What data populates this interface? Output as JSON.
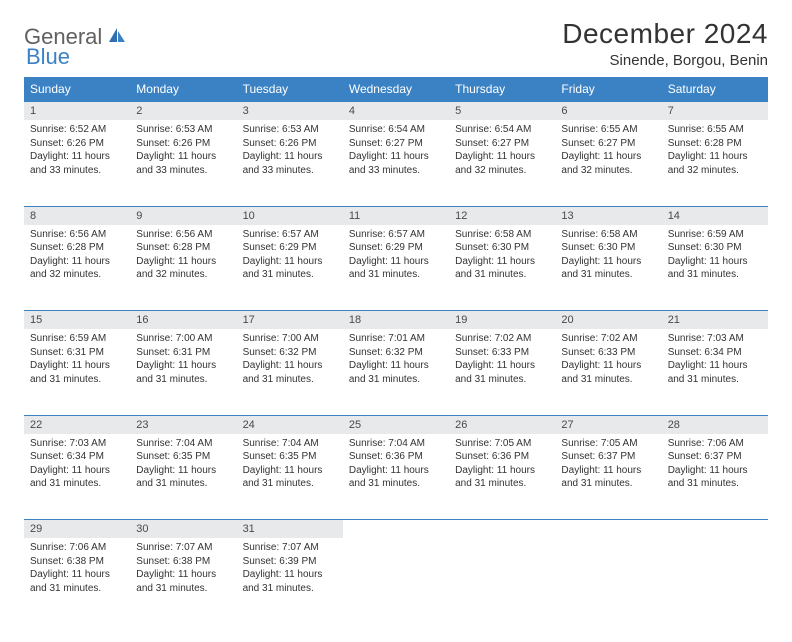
{
  "logo": {
    "word1": "General",
    "word2": "Blue"
  },
  "title": "December 2024",
  "location": "Sinende, Borgou, Benin",
  "colors": {
    "header_bg": "#3b82c4",
    "header_text": "#ffffff",
    "daynum_bg": "#e7e9eb",
    "row_border": "#3b82c4",
    "text": "#333333",
    "logo_gray": "#616161",
    "logo_blue": "#3b82c4",
    "page_bg": "#ffffff"
  },
  "typography": {
    "title_fontsize": 28,
    "location_fontsize": 15,
    "dayheader_fontsize": 12,
    "daynum_fontsize": 11,
    "cell_fontsize": 10
  },
  "day_headers": [
    "Sunday",
    "Monday",
    "Tuesday",
    "Wednesday",
    "Thursday",
    "Friday",
    "Saturday"
  ],
  "weeks": [
    [
      {
        "num": "1",
        "sunrise": "6:52 AM",
        "sunset": "6:26 PM",
        "daylight": "11 hours and 33 minutes."
      },
      {
        "num": "2",
        "sunrise": "6:53 AM",
        "sunset": "6:26 PM",
        "daylight": "11 hours and 33 minutes."
      },
      {
        "num": "3",
        "sunrise": "6:53 AM",
        "sunset": "6:26 PM",
        "daylight": "11 hours and 33 minutes."
      },
      {
        "num": "4",
        "sunrise": "6:54 AM",
        "sunset": "6:27 PM",
        "daylight": "11 hours and 33 minutes."
      },
      {
        "num": "5",
        "sunrise": "6:54 AM",
        "sunset": "6:27 PM",
        "daylight": "11 hours and 32 minutes."
      },
      {
        "num": "6",
        "sunrise": "6:55 AM",
        "sunset": "6:27 PM",
        "daylight": "11 hours and 32 minutes."
      },
      {
        "num": "7",
        "sunrise": "6:55 AM",
        "sunset": "6:28 PM",
        "daylight": "11 hours and 32 minutes."
      }
    ],
    [
      {
        "num": "8",
        "sunrise": "6:56 AM",
        "sunset": "6:28 PM",
        "daylight": "11 hours and 32 minutes."
      },
      {
        "num": "9",
        "sunrise": "6:56 AM",
        "sunset": "6:28 PM",
        "daylight": "11 hours and 32 minutes."
      },
      {
        "num": "10",
        "sunrise": "6:57 AM",
        "sunset": "6:29 PM",
        "daylight": "11 hours and 31 minutes."
      },
      {
        "num": "11",
        "sunrise": "6:57 AM",
        "sunset": "6:29 PM",
        "daylight": "11 hours and 31 minutes."
      },
      {
        "num": "12",
        "sunrise": "6:58 AM",
        "sunset": "6:30 PM",
        "daylight": "11 hours and 31 minutes."
      },
      {
        "num": "13",
        "sunrise": "6:58 AM",
        "sunset": "6:30 PM",
        "daylight": "11 hours and 31 minutes."
      },
      {
        "num": "14",
        "sunrise": "6:59 AM",
        "sunset": "6:30 PM",
        "daylight": "11 hours and 31 minutes."
      }
    ],
    [
      {
        "num": "15",
        "sunrise": "6:59 AM",
        "sunset": "6:31 PM",
        "daylight": "11 hours and 31 minutes."
      },
      {
        "num": "16",
        "sunrise": "7:00 AM",
        "sunset": "6:31 PM",
        "daylight": "11 hours and 31 minutes."
      },
      {
        "num": "17",
        "sunrise": "7:00 AM",
        "sunset": "6:32 PM",
        "daylight": "11 hours and 31 minutes."
      },
      {
        "num": "18",
        "sunrise": "7:01 AM",
        "sunset": "6:32 PM",
        "daylight": "11 hours and 31 minutes."
      },
      {
        "num": "19",
        "sunrise": "7:02 AM",
        "sunset": "6:33 PM",
        "daylight": "11 hours and 31 minutes."
      },
      {
        "num": "20",
        "sunrise": "7:02 AM",
        "sunset": "6:33 PM",
        "daylight": "11 hours and 31 minutes."
      },
      {
        "num": "21",
        "sunrise": "7:03 AM",
        "sunset": "6:34 PM",
        "daylight": "11 hours and 31 minutes."
      }
    ],
    [
      {
        "num": "22",
        "sunrise": "7:03 AM",
        "sunset": "6:34 PM",
        "daylight": "11 hours and 31 minutes."
      },
      {
        "num": "23",
        "sunrise": "7:04 AM",
        "sunset": "6:35 PM",
        "daylight": "11 hours and 31 minutes."
      },
      {
        "num": "24",
        "sunrise": "7:04 AM",
        "sunset": "6:35 PM",
        "daylight": "11 hours and 31 minutes."
      },
      {
        "num": "25",
        "sunrise": "7:04 AM",
        "sunset": "6:36 PM",
        "daylight": "11 hours and 31 minutes."
      },
      {
        "num": "26",
        "sunrise": "7:05 AM",
        "sunset": "6:36 PM",
        "daylight": "11 hours and 31 minutes."
      },
      {
        "num": "27",
        "sunrise": "7:05 AM",
        "sunset": "6:37 PM",
        "daylight": "11 hours and 31 minutes."
      },
      {
        "num": "28",
        "sunrise": "7:06 AM",
        "sunset": "6:37 PM",
        "daylight": "11 hours and 31 minutes."
      }
    ],
    [
      {
        "num": "29",
        "sunrise": "7:06 AM",
        "sunset": "6:38 PM",
        "daylight": "11 hours and 31 minutes."
      },
      {
        "num": "30",
        "sunrise": "7:07 AM",
        "sunset": "6:38 PM",
        "daylight": "11 hours and 31 minutes."
      },
      {
        "num": "31",
        "sunrise": "7:07 AM",
        "sunset": "6:39 PM",
        "daylight": "11 hours and 31 minutes."
      },
      null,
      null,
      null,
      null
    ]
  ],
  "labels": {
    "sunrise": "Sunrise:",
    "sunset": "Sunset:",
    "daylight": "Daylight:"
  }
}
